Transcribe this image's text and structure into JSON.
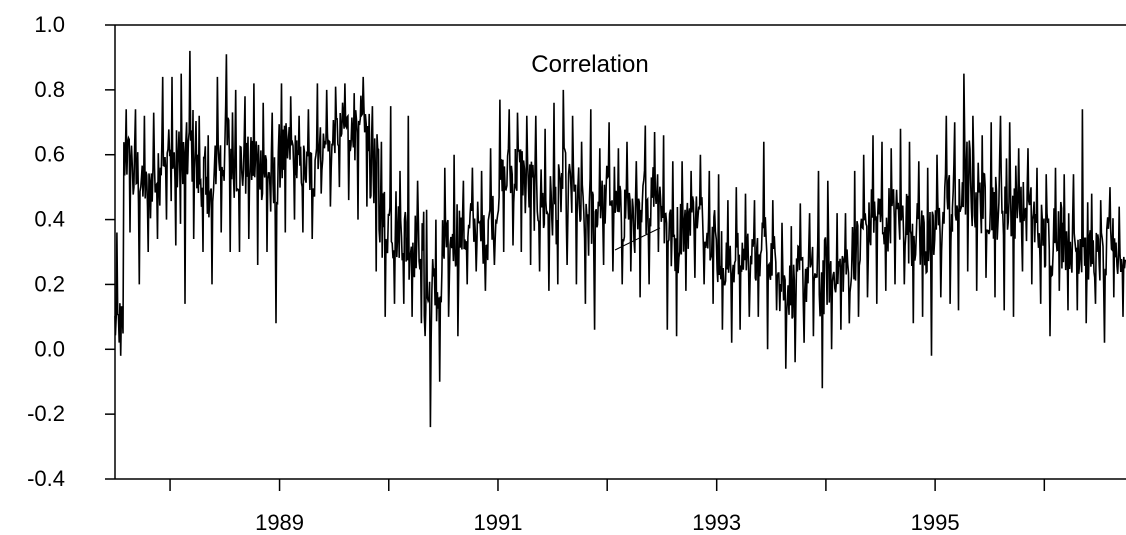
{
  "chart_data": {
    "type": "line",
    "title": "",
    "xlabel": "",
    "ylabel": "",
    "ylim": [
      -0.4,
      1.0
    ],
    "xlim": [
      "1987-07-01",
      "1996-09-30"
    ],
    "grid": false,
    "legend": "none",
    "y_ticks": [
      "1.0",
      "0.8",
      "0.6",
      "0.4",
      "0.2",
      "0.0",
      "-0.2",
      "-0.4"
    ],
    "x_tick_labels": [
      "1989",
      "1991",
      "1993",
      "1995"
    ],
    "x_major_dates": [
      "1989-01-01",
      "1991-01-01",
      "1993-01-01",
      "1995-01-01"
    ],
    "x_minor_dates": [
      "1988-01-01",
      "1990-01-01",
      "1992-01-01",
      "1994-01-01",
      "1996-01-01"
    ],
    "series": [
      {
        "name": "Correlation",
        "color": "#000000",
        "x": [
          "1987-07",
          "1987-08",
          "1987-09",
          "1987-10",
          "1987-11",
          "1987-12",
          "1988-01",
          "1988-02",
          "1988-03",
          "1988-04",
          "1988-05",
          "1988-06",
          "1988-07",
          "1988-08",
          "1988-09",
          "1988-10",
          "1988-11",
          "1988-12",
          "1989-01",
          "1989-02",
          "1989-03",
          "1989-04",
          "1989-05",
          "1989-06",
          "1989-07",
          "1989-08",
          "1989-09",
          "1989-10",
          "1989-11",
          "1989-12",
          "1990-01",
          "1990-02",
          "1990-03",
          "1990-04",
          "1990-05",
          "1990-06",
          "1990-07",
          "1990-08",
          "1990-09",
          "1990-10",
          "1990-11",
          "1990-12",
          "1991-01",
          "1991-02",
          "1991-03",
          "1991-04",
          "1991-05",
          "1991-06",
          "1991-07",
          "1991-08",
          "1991-09",
          "1991-10",
          "1991-11",
          "1991-12",
          "1992-01",
          "1992-02",
          "1992-03",
          "1992-04",
          "1992-05",
          "1992-06",
          "1992-07",
          "1992-08",
          "1992-09",
          "1992-10",
          "1992-11",
          "1992-12",
          "1993-01",
          "1993-02",
          "1993-03",
          "1993-04",
          "1993-05",
          "1993-06",
          "1993-07",
          "1993-08",
          "1993-09",
          "1993-10",
          "1993-11",
          "1993-12",
          "1994-01",
          "1994-02",
          "1994-03",
          "1994-04",
          "1994-05",
          "1994-06",
          "1994-07",
          "1994-08",
          "1994-09",
          "1994-10",
          "1994-11",
          "1994-12",
          "1995-01",
          "1995-02",
          "1995-03",
          "1995-04",
          "1995-05",
          "1995-06",
          "1995-07",
          "1995-08",
          "1995-09",
          "1995-10",
          "1995-11",
          "1995-12",
          "1996-01",
          "1996-02",
          "1996-03",
          "1996-04",
          "1996-05",
          "1996-06",
          "1996-07",
          "1996-08",
          "1996-09"
        ],
        "y": [
          0.0,
          0.62,
          0.58,
          0.45,
          0.52,
          0.6,
          0.56,
          0.58,
          0.62,
          0.55,
          0.48,
          0.58,
          0.64,
          0.6,
          0.56,
          0.62,
          0.58,
          0.54,
          0.6,
          0.64,
          0.58,
          0.55,
          0.6,
          0.62,
          0.68,
          0.72,
          0.7,
          0.74,
          0.6,
          0.42,
          0.35,
          0.38,
          0.3,
          0.36,
          0.22,
          0.18,
          0.28,
          0.4,
          0.34,
          0.38,
          0.32,
          0.4,
          0.48,
          0.55,
          0.58,
          0.5,
          0.46,
          0.44,
          0.42,
          0.48,
          0.45,
          0.44,
          0.4,
          0.46,
          0.48,
          0.42,
          0.44,
          0.4,
          0.48,
          0.52,
          0.42,
          0.36,
          0.38,
          0.45,
          0.4,
          0.38,
          0.3,
          0.26,
          0.28,
          0.3,
          0.26,
          0.32,
          0.28,
          0.22,
          0.2,
          0.22,
          0.25,
          0.18,
          0.22,
          0.26,
          0.24,
          0.3,
          0.36,
          0.38,
          0.4,
          0.42,
          0.38,
          0.4,
          0.36,
          0.34,
          0.38,
          0.45,
          0.48,
          0.52,
          0.5,
          0.46,
          0.48,
          0.52,
          0.5,
          0.44,
          0.42,
          0.38,
          0.36,
          0.4,
          0.34,
          0.32,
          0.3,
          0.28,
          0.3,
          0.34,
          0.26
        ],
        "y_max": [
          0.36,
          0.74,
          0.74,
          0.72,
          0.73,
          0.84,
          0.84,
          0.85,
          0.92,
          0.72,
          0.66,
          0.84,
          0.91,
          0.8,
          0.78,
          0.82,
          0.76,
          0.73,
          0.82,
          0.78,
          0.72,
          0.74,
          0.82,
          0.8,
          0.81,
          0.82,
          0.79,
          0.84,
          0.75,
          0.64,
          0.75,
          0.55,
          0.72,
          0.52,
          0.43,
          0.4,
          0.56,
          0.6,
          0.52,
          0.56,
          0.55,
          0.62,
          0.77,
          0.74,
          0.73,
          0.72,
          0.72,
          0.68,
          0.76,
          0.8,
          0.72,
          0.64,
          0.74,
          0.62,
          0.7,
          0.62,
          0.64,
          0.58,
          0.69,
          0.67,
          0.66,
          0.58,
          0.58,
          0.55,
          0.6,
          0.55,
          0.54,
          0.46,
          0.5,
          0.48,
          0.46,
          0.64,
          0.46,
          0.39,
          0.38,
          0.45,
          0.42,
          0.55,
          0.52,
          0.42,
          0.42,
          0.55,
          0.6,
          0.66,
          0.64,
          0.62,
          0.68,
          0.64,
          0.58,
          0.56,
          0.6,
          0.72,
          0.7,
          0.85,
          0.72,
          0.66,
          0.7,
          0.72,
          0.7,
          0.62,
          0.62,
          0.56,
          0.54,
          0.56,
          0.54,
          0.54,
          0.74,
          0.48,
          0.46,
          0.5,
          0.44
        ],
        "y_min": [
          -0.02,
          0.36,
          0.2,
          0.3,
          0.34,
          0.4,
          0.32,
          0.14,
          0.34,
          0.3,
          0.2,
          0.36,
          0.3,
          0.3,
          0.34,
          0.26,
          0.3,
          0.08,
          0.36,
          0.4,
          0.36,
          0.34,
          0.48,
          0.44,
          0.5,
          0.46,
          0.4,
          0.44,
          0.24,
          0.1,
          0.14,
          0.14,
          0.1,
          0.08,
          -0.24,
          -0.1,
          0.1,
          0.04,
          0.2,
          0.24,
          0.18,
          0.26,
          0.3,
          0.32,
          0.3,
          0.26,
          0.24,
          0.18,
          0.2,
          0.26,
          0.2,
          0.14,
          0.06,
          0.26,
          0.24,
          0.2,
          0.24,
          0.16,
          0.2,
          0.3,
          0.06,
          0.04,
          0.18,
          0.22,
          0.2,
          0.14,
          0.06,
          0.02,
          0.06,
          0.1,
          0.1,
          0.0,
          0.12,
          -0.06,
          -0.04,
          0.02,
          0.04,
          -0.12,
          0.0,
          0.06,
          0.08,
          0.1,
          0.16,
          0.14,
          0.18,
          0.2,
          0.2,
          0.08,
          0.1,
          -0.02,
          0.16,
          0.14,
          0.12,
          0.24,
          0.18,
          0.22,
          0.16,
          0.12,
          0.1,
          0.24,
          0.2,
          0.14,
          0.04,
          0.18,
          0.12,
          0.12,
          0.08,
          0.14,
          0.02,
          0.16,
          0.1
        ]
      }
    ]
  }
}
